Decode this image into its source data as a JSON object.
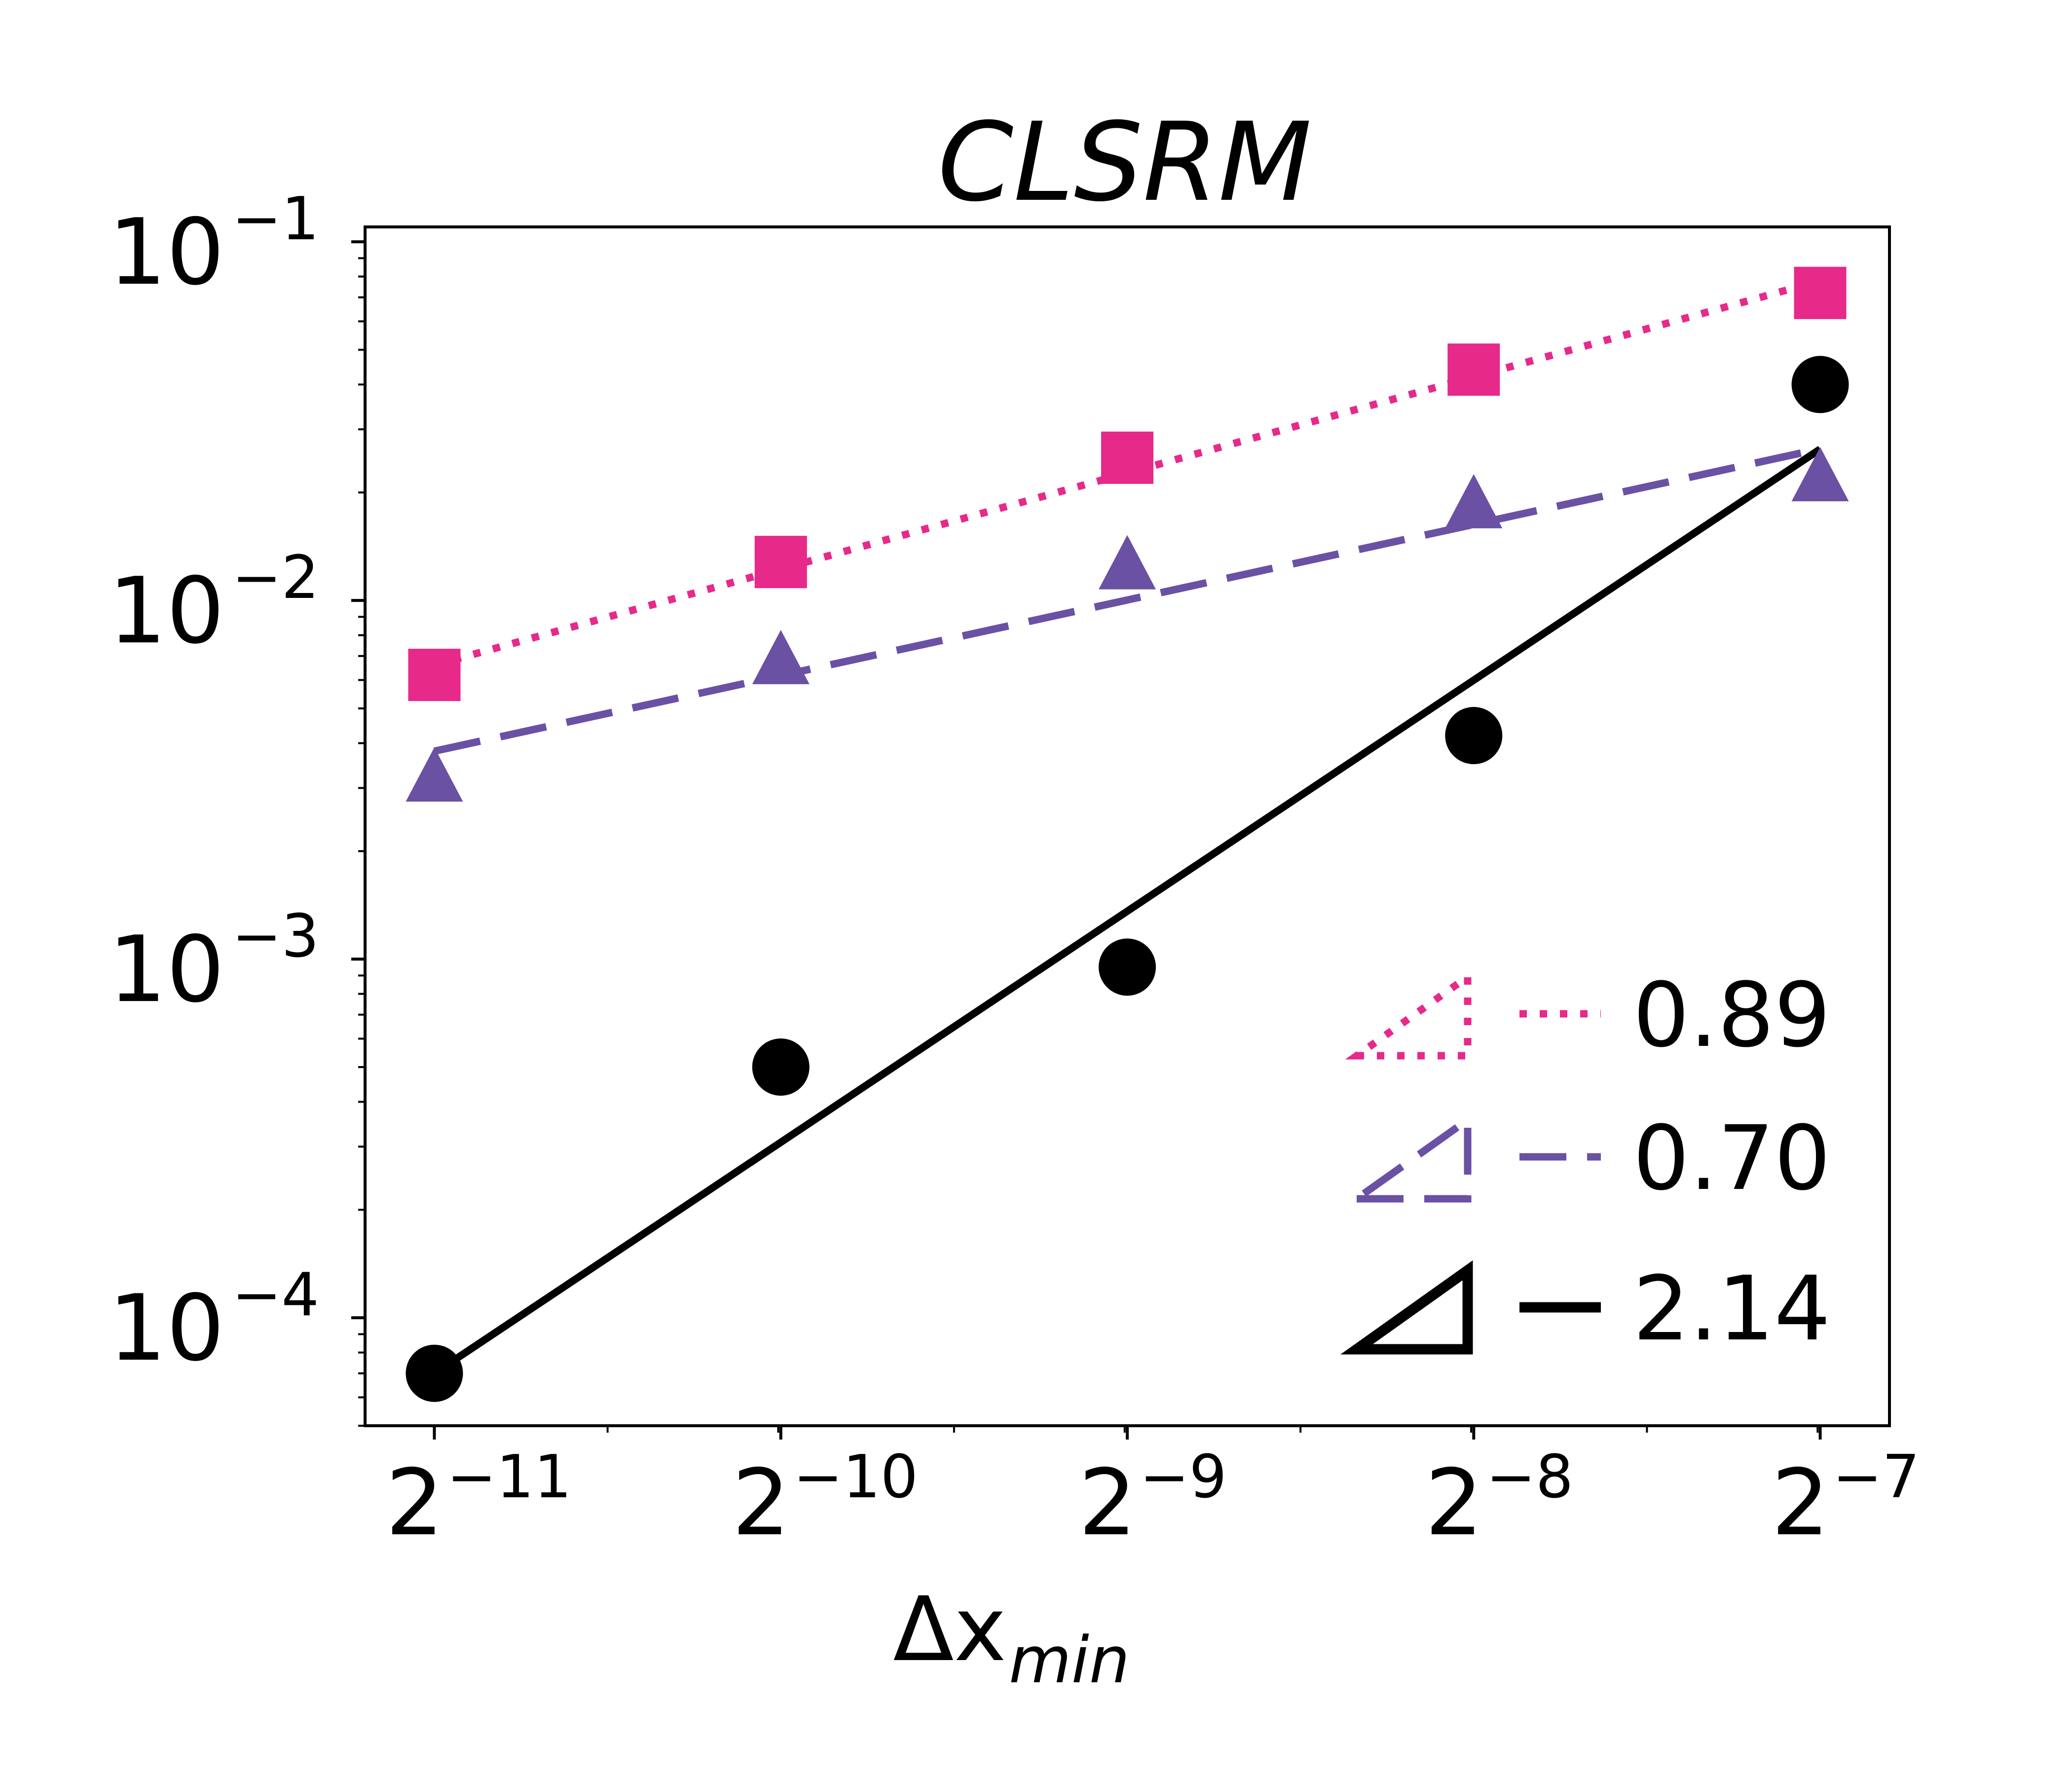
{
  "chart_data": {
    "type": "scatter",
    "title": "CLSRM",
    "xlabel": "Δx",
    "xlabel_subscript": "min",
    "xscale": "log2",
    "yscale": "log10",
    "xlim_exp": [
      -11.2,
      -6.8
    ],
    "ylim": [
      5e-05,
      0.11
    ],
    "x_ticks": [
      {
        "base": "2",
        "exp": "−11",
        "value": -11
      },
      {
        "base": "2",
        "exp": "−10",
        "value": -10
      },
      {
        "base": "2",
        "exp": "−9",
        "value": -9
      },
      {
        "base": "2",
        "exp": "−8",
        "value": -8
      },
      {
        "base": "2",
        "exp": "−7",
        "value": -7
      }
    ],
    "y_ticks": [
      {
        "base": "10",
        "exp": "−1",
        "value": -1
      },
      {
        "base": "10",
        "exp": "−2",
        "value": -2
      },
      {
        "base": "10",
        "exp": "−3",
        "value": -3
      },
      {
        "base": "10",
        "exp": "−4",
        "value": -4
      }
    ],
    "x_exponents": [
      -11,
      -10,
      -9,
      -8,
      -7
    ],
    "series": [
      {
        "name": "pink-squares",
        "marker": "square",
        "color": "#e7298a",
        "linestyle": "dotted",
        "values": [
          0.0062,
          0.0128,
          0.025,
          0.044,
          0.072
        ],
        "fit": {
          "slope": 0.89,
          "y_at_first": 0.0066
        },
        "slope_label": "0.89"
      },
      {
        "name": "purple-triangles",
        "marker": "triangle",
        "color": "#6a51a3",
        "linestyle": "dashed",
        "values": [
          0.0032,
          0.0068,
          0.0125,
          0.0185,
          0.022
        ],
        "fit": {
          "slope": 0.7,
          "y_at_first": 0.0038
        },
        "slope_label": "0.70"
      },
      {
        "name": "black-circles",
        "marker": "circle",
        "color": "#000000",
        "linestyle": "solid",
        "values": [
          7e-05,
          0.0005,
          0.00095,
          0.0042,
          0.04
        ],
        "fit": {
          "slope": 2.14,
          "y_at_first": 7e-05
        },
        "slope_label": "2.14"
      }
    ]
  }
}
